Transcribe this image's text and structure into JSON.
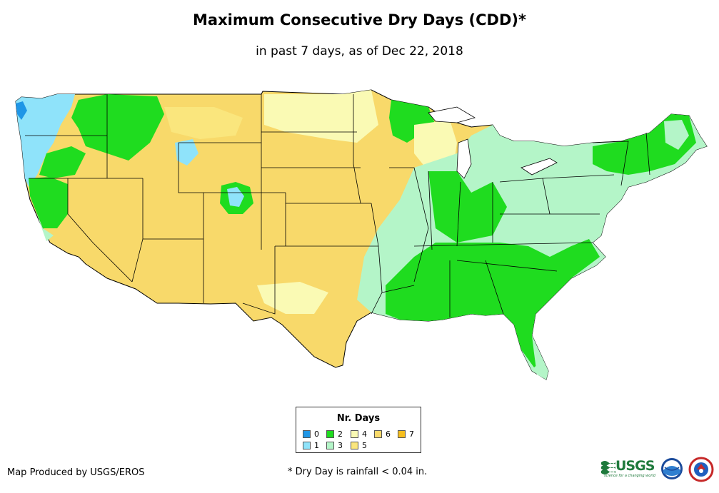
{
  "title": "Maximum Consecutive Dry Days (CDD)*",
  "subtitle": "in past 7 days, as of Dec 22, 2018",
  "legend": {
    "title": "Nr. Days",
    "items": [
      {
        "label": "0",
        "color": "#1f96e6"
      },
      {
        "label": "1",
        "color": "#8fe3fa"
      },
      {
        "label": "2",
        "color": "#1fdc1f"
      },
      {
        "label": "3",
        "color": "#b4f5c8"
      },
      {
        "label": "4",
        "color": "#fafab4"
      },
      {
        "label": "5",
        "color": "#fae67d"
      },
      {
        "label": "6",
        "color": "#f8d96a"
      },
      {
        "label": "7",
        "color": "#f6be1e"
      }
    ]
  },
  "footer": {
    "credit": "Map Produced by USGS/EROS",
    "note": "* Dry Day is rainfall < 0.04 in."
  },
  "logos": {
    "usgs_text": "USGS",
    "usgs_tagline": "science for a changing world"
  },
  "icons": [
    "usgs-logo-icon",
    "noaa-logo-icon",
    "nws-logo-icon"
  ]
}
